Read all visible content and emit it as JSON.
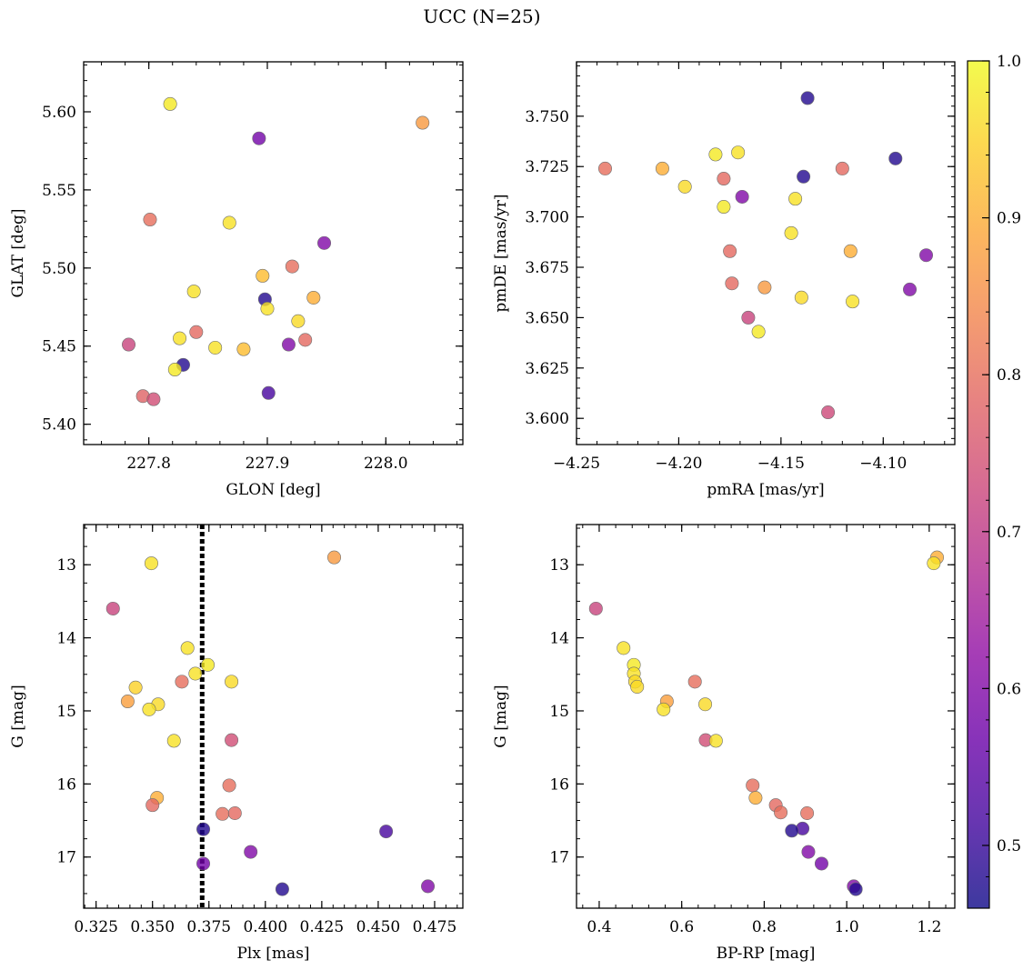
{
  "title": "UCC (N=25)",
  "colorbar": {
    "min": 0.46,
    "max": 1.0,
    "ticks": [
      0.5,
      0.6,
      0.7,
      0.8,
      0.9,
      1.0
    ],
    "tick_labels": [
      "0.5",
      "0.6",
      "0.7",
      "0.8",
      "0.9",
      "1.0"
    ],
    "colormap": "plasma"
  },
  "chart_data": [
    {
      "type": "scatter",
      "xlabel": "GLON [deg]",
      "ylabel": "GLAT [deg]",
      "xlim": [
        227.745,
        228.065
      ],
      "ylim": [
        5.387,
        5.632
      ],
      "xticks": [
        227.8,
        227.9,
        228.0
      ],
      "xtick_labels": [
        "227.8",
        "227.9",
        "228.0"
      ],
      "yticks": [
        5.4,
        5.45,
        5.5,
        5.55,
        5.6
      ],
      "ytick_labels": [
        "5.40",
        "5.45",
        "5.50",
        "5.55",
        "5.60"
      ],
      "points": [
        {
          "x": 227.818,
          "y": 5.605,
          "c": 0.98
        },
        {
          "x": 228.031,
          "y": 5.593,
          "c": 0.87
        },
        {
          "x": 227.893,
          "y": 5.583,
          "c": 0.58
        },
        {
          "x": 227.801,
          "y": 5.531,
          "c": 0.8
        },
        {
          "x": 227.868,
          "y": 5.529,
          "c": 0.97
        },
        {
          "x": 227.948,
          "y": 5.516,
          "c": 0.6
        },
        {
          "x": 227.921,
          "y": 5.501,
          "c": 0.8
        },
        {
          "x": 227.896,
          "y": 5.495,
          "c": 0.92
        },
        {
          "x": 227.838,
          "y": 5.485,
          "c": 0.97
        },
        {
          "x": 227.898,
          "y": 5.48,
          "c": 0.48
        },
        {
          "x": 227.939,
          "y": 5.481,
          "c": 0.9
        },
        {
          "x": 227.9,
          "y": 5.474,
          "c": 0.97
        },
        {
          "x": 227.926,
          "y": 5.466,
          "c": 0.96
        },
        {
          "x": 227.84,
          "y": 5.459,
          "c": 0.79
        },
        {
          "x": 227.826,
          "y": 5.455,
          "c": 0.97
        },
        {
          "x": 227.932,
          "y": 5.454,
          "c": 0.79
        },
        {
          "x": 227.783,
          "y": 5.451,
          "c": 0.72
        },
        {
          "x": 227.918,
          "y": 5.451,
          "c": 0.6
        },
        {
          "x": 227.856,
          "y": 5.449,
          "c": 0.97
        },
        {
          "x": 227.88,
          "y": 5.448,
          "c": 0.92
        },
        {
          "x": 227.829,
          "y": 5.438,
          "c": 0.48
        },
        {
          "x": 227.822,
          "y": 5.435,
          "c": 0.98
        },
        {
          "x": 227.901,
          "y": 5.42,
          "c": 0.52
        },
        {
          "x": 227.795,
          "y": 5.418,
          "c": 0.78
        },
        {
          "x": 227.804,
          "y": 5.416,
          "c": 0.74
        }
      ]
    },
    {
      "type": "scatter",
      "xlabel": "pmRA [mas/yr]",
      "ylabel": "pmDE [mas/yr]",
      "xlim": [
        -4.25,
        -4.065
      ],
      "ylim": [
        3.587,
        3.777
      ],
      "xticks": [
        -4.25,
        -4.2,
        -4.15,
        -4.1
      ],
      "xtick_labels": [
        "−4.25",
        "−4.20",
        "−4.15",
        "−4.10"
      ],
      "yticks": [
        3.6,
        3.625,
        3.65,
        3.675,
        3.7,
        3.725,
        3.75
      ],
      "ytick_labels": [
        "3.600",
        "3.625",
        "3.650",
        "3.675",
        "3.700",
        "3.725",
        "3.750"
      ],
      "points": [
        {
          "x": -4.137,
          "y": 3.759,
          "c": 0.48
        },
        {
          "x": -4.182,
          "y": 3.731,
          "c": 0.98
        },
        {
          "x": -4.171,
          "y": 3.732,
          "c": 0.97
        },
        {
          "x": -4.094,
          "y": 3.729,
          "c": 0.48
        },
        {
          "x": -4.236,
          "y": 3.724,
          "c": 0.8
        },
        {
          "x": -4.208,
          "y": 3.724,
          "c": 0.9
        },
        {
          "x": -4.12,
          "y": 3.724,
          "c": 0.79
        },
        {
          "x": -4.139,
          "y": 3.72,
          "c": 0.48
        },
        {
          "x": -4.178,
          "y": 3.719,
          "c": 0.79
        },
        {
          "x": -4.197,
          "y": 3.715,
          "c": 0.96
        },
        {
          "x": -4.169,
          "y": 3.71,
          "c": 0.6
        },
        {
          "x": -4.143,
          "y": 3.709,
          "c": 0.97
        },
        {
          "x": -4.178,
          "y": 3.705,
          "c": 0.98
        },
        {
          "x": -4.145,
          "y": 3.692,
          "c": 0.97
        },
        {
          "x": -4.175,
          "y": 3.683,
          "c": 0.79
        },
        {
          "x": -4.116,
          "y": 3.683,
          "c": 0.9
        },
        {
          "x": -4.079,
          "y": 3.681,
          "c": 0.6
        },
        {
          "x": -4.174,
          "y": 3.667,
          "c": 0.79
        },
        {
          "x": -4.158,
          "y": 3.665,
          "c": 0.87
        },
        {
          "x": -4.087,
          "y": 3.664,
          "c": 0.6
        },
        {
          "x": -4.14,
          "y": 3.66,
          "c": 0.96
        },
        {
          "x": -4.115,
          "y": 3.658,
          "c": 0.97
        },
        {
          "x": -4.166,
          "y": 3.65,
          "c": 0.72
        },
        {
          "x": -4.161,
          "y": 3.643,
          "c": 0.98
        },
        {
          "x": -4.127,
          "y": 3.603,
          "c": 0.73
        }
      ]
    },
    {
      "type": "scatter",
      "xlabel": "Plx [mas]",
      "ylabel": "G [mag]",
      "xlim": [
        0.3195,
        0.4875
      ],
      "ylim": [
        17.7,
        12.45
      ],
      "xticks": [
        0.325,
        0.35,
        0.375,
        0.4,
        0.425,
        0.45,
        0.475
      ],
      "xtick_labels": [
        "0.325",
        "0.350",
        "0.375",
        "0.400",
        "0.425",
        "0.450",
        "0.475"
      ],
      "yticks": [
        13,
        14,
        15,
        16,
        17
      ],
      "ytick_labels": [
        "13",
        "14",
        "15",
        "16",
        "17"
      ],
      "vline": 0.372,
      "points": [
        {
          "x": 0.3495,
          "y": 12.98,
          "c": 0.97
        },
        {
          "x": 0.4305,
          "y": 12.9,
          "c": 0.87
        },
        {
          "x": 0.3325,
          "y": 13.6,
          "c": 0.72
        },
        {
          "x": 0.3655,
          "y": 14.14,
          "c": 0.97
        },
        {
          "x": 0.3745,
          "y": 14.37,
          "c": 0.98
        },
        {
          "x": 0.369,
          "y": 14.49,
          "c": 0.97
        },
        {
          "x": 0.363,
          "y": 14.6,
          "c": 0.8
        },
        {
          "x": 0.385,
          "y": 14.6,
          "c": 0.96
        },
        {
          "x": 0.3425,
          "y": 14.68,
          "c": 0.95
        },
        {
          "x": 0.339,
          "y": 14.87,
          "c": 0.88
        },
        {
          "x": 0.3525,
          "y": 14.91,
          "c": 0.96
        },
        {
          "x": 0.3485,
          "y": 14.98,
          "c": 0.97
        },
        {
          "x": 0.3595,
          "y": 15.41,
          "c": 0.97
        },
        {
          "x": 0.385,
          "y": 15.4,
          "c": 0.74
        },
        {
          "x": 0.384,
          "y": 16.02,
          "c": 0.8
        },
        {
          "x": 0.352,
          "y": 16.19,
          "c": 0.9
        },
        {
          "x": 0.35,
          "y": 16.29,
          "c": 0.79
        },
        {
          "x": 0.381,
          "y": 16.41,
          "c": 0.8
        },
        {
          "x": 0.3865,
          "y": 16.4,
          "c": 0.79
        },
        {
          "x": 0.3725,
          "y": 16.62,
          "c": 0.48
        },
        {
          "x": 0.4535,
          "y": 16.65,
          "c": 0.52
        },
        {
          "x": 0.3935,
          "y": 16.93,
          "c": 0.6
        },
        {
          "x": 0.3725,
          "y": 17.09,
          "c": 0.58
        },
        {
          "x": 0.4075,
          "y": 17.44,
          "c": 0.48
        },
        {
          "x": 0.472,
          "y": 17.4,
          "c": 0.6
        }
      ]
    },
    {
      "type": "scatter",
      "xlabel": "BP-RP [mag]",
      "ylabel": "G [mag]",
      "xlim": [
        0.345,
        1.262
      ],
      "ylim": [
        17.7,
        12.45
      ],
      "xticks": [
        0.4,
        0.6,
        0.8,
        1.0,
        1.2
      ],
      "xtick_labels": [
        "0.4",
        "0.6",
        "0.8",
        "1.0",
        "1.2"
      ],
      "yticks": [
        13,
        14,
        15,
        16,
        17
      ],
      "ytick_labels": [
        "13",
        "14",
        "15",
        "16",
        "17"
      ],
      "points": [
        {
          "x": 1.219,
          "y": 12.9,
          "c": 0.9
        },
        {
          "x": 1.211,
          "y": 12.98,
          "c": 0.97
        },
        {
          "x": 0.392,
          "y": 13.6,
          "c": 0.72
        },
        {
          "x": 0.459,
          "y": 14.14,
          "c": 0.97
        },
        {
          "x": 0.484,
          "y": 14.37,
          "c": 0.98
        },
        {
          "x": 0.484,
          "y": 14.49,
          "c": 0.97
        },
        {
          "x": 0.487,
          "y": 14.6,
          "c": 0.96
        },
        {
          "x": 0.492,
          "y": 14.67,
          "c": 0.96
        },
        {
          "x": 0.632,
          "y": 14.6,
          "c": 0.8
        },
        {
          "x": 0.564,
          "y": 14.87,
          "c": 0.88
        },
        {
          "x": 0.657,
          "y": 14.91,
          "c": 0.96
        },
        {
          "x": 0.556,
          "y": 14.98,
          "c": 0.97
        },
        {
          "x": 0.658,
          "y": 15.4,
          "c": 0.74
        },
        {
          "x": 0.683,
          "y": 15.41,
          "c": 0.97
        },
        {
          "x": 0.772,
          "y": 16.02,
          "c": 0.8
        },
        {
          "x": 0.779,
          "y": 16.19,
          "c": 0.9
        },
        {
          "x": 0.828,
          "y": 16.29,
          "c": 0.79
        },
        {
          "x": 0.84,
          "y": 16.39,
          "c": 0.8
        },
        {
          "x": 0.904,
          "y": 16.4,
          "c": 0.8
        },
        {
          "x": 0.893,
          "y": 16.61,
          "c": 0.52
        },
        {
          "x": 0.867,
          "y": 16.64,
          "c": 0.48
        },
        {
          "x": 0.907,
          "y": 16.93,
          "c": 0.6
        },
        {
          "x": 0.939,
          "y": 17.09,
          "c": 0.58
        },
        {
          "x": 1.017,
          "y": 17.4,
          "c": 0.6
        },
        {
          "x": 1.022,
          "y": 17.44,
          "c": 0.48
        }
      ]
    }
  ]
}
